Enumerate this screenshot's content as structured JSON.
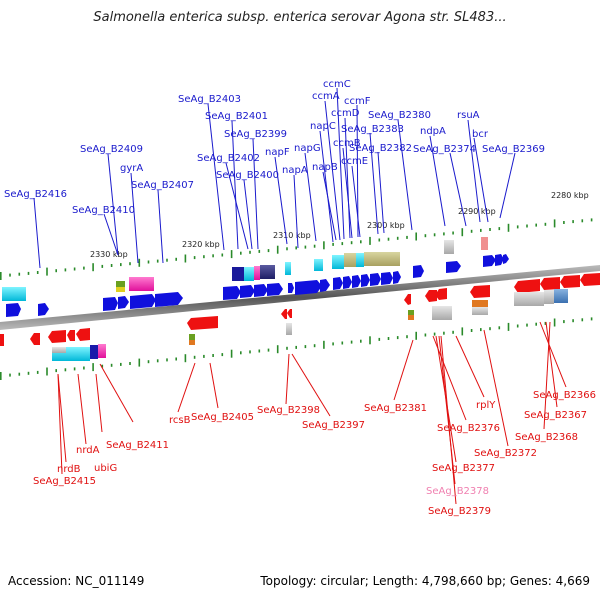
{
  "title": "Salmonella enterica subsp. enterica serovar Agona str. SL483...",
  "footer": {
    "accession": "Accession: NC_011149",
    "topology": "Topology: circular; Length: 4,798,660 bp; Genes: 4,669"
  },
  "colors": {
    "forward_label": "#1a1acc",
    "reverse_label": "#e01010",
    "highlight_label": "#f080b0",
    "backbone": "#777777",
    "tick": "#2a8a2a",
    "forward_gene": "#1010dd",
    "reverse_gene": "#ee1111"
  },
  "scale_labels": [
    "2330 kbp",
    "2320 kbp",
    "2310 kbp",
    "2300 kbp",
    "2290 kbp",
    "2280 kbp"
  ],
  "forward_labels": [
    "SeAg_B2416",
    "SeAg_B2410",
    "SeAg_B2409",
    "gyrA",
    "SeAg_B2407",
    "SeAg_B2403",
    "SeAg_B2401",
    "SeAg_B2399",
    "SeAg_B2402",
    "SeAg_B2400",
    "napF",
    "napA",
    "napG",
    "napC",
    "ccmA",
    "ccmC",
    "napB",
    "ccmD",
    "ccmB",
    "ccmF",
    "ccmE",
    "SeAg_B2383",
    "SeAg_B2382",
    "SeAg_B2380",
    "ndpA",
    "SeAg_B2374",
    "rsuA",
    "bcr",
    "SeAg_B2369"
  ],
  "reverse_labels": [
    "nrdB",
    "SeAg_B2415",
    "nrdA",
    "ubiG",
    "SeAg_B2411",
    "rcsB",
    "SeAg_B2405",
    "SeAg_B2398",
    "SeAg_B2397",
    "SeAg_B2381",
    "SeAg_B2376",
    "SeAg_B2377",
    "SeAg_B2378",
    "SeAg_B2379",
    "rplY",
    "SeAg_B2372",
    "SeAg_B2366",
    "SeAg_B2367",
    "SeAg_B2368"
  ]
}
